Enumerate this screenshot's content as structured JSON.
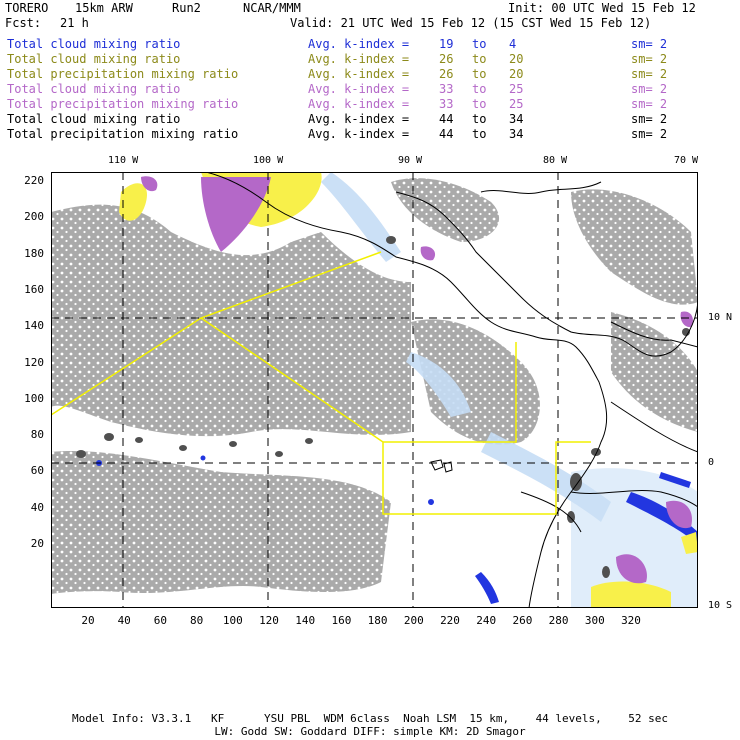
{
  "header": {
    "model": "TORERO",
    "resolution": "15km ARW",
    "run": "Run2",
    "org": "NCAR/MMM",
    "init": "Init: 00 UTC Wed 15 Feb 12",
    "fcst_label": "Fcst:",
    "fcst_value": "21 h",
    "valid": "Valid: 21 UTC Wed 15 Feb 12 (15 CST Wed 15 Feb 12)"
  },
  "legend": [
    {
      "label": "Total cloud mixing ratio",
      "index": "Avg. k-index = ",
      "from": "19",
      "to_word": "to",
      "to": "4",
      "sm": "sm= 2",
      "color": "#1e2ed6"
    },
    {
      "label": "Total cloud mixing ratio",
      "index": "Avg. k-index = ",
      "from": "26",
      "to_word": "to",
      "to": "20",
      "sm": "sm= 2",
      "color": "#8c8a1a"
    },
    {
      "label": "Total precipitation mixing ratio",
      "index": "Avg. k-index = ",
      "from": "26",
      "to_word": "to",
      "to": "20",
      "sm": "sm= 2",
      "color": "#8c8a1a"
    },
    {
      "label": "Total cloud mixing ratio",
      "index": "Avg. k-index = ",
      "from": "33",
      "to_word": "to",
      "to": "25",
      "sm": "sm= 2",
      "color": "#b468c8"
    },
    {
      "label": "Total precipitation mixing ratio",
      "index": "Avg. k-index = ",
      "from": "33",
      "to_word": "to",
      "to": "25",
      "sm": "sm= 2",
      "color": "#b468c8"
    },
    {
      "label": "Total cloud mixing ratio",
      "index": "Avg. k-index = ",
      "from": "44",
      "to_word": "to",
      "to": "34",
      "sm": "sm= 2",
      "color": "#000000"
    },
    {
      "label": "Total precipitation mixing ratio",
      "index": "Avg. k-index = ",
      "from": "44",
      "to_word": "to",
      "to": "34",
      "sm": "sm= 2",
      "color": "#000000"
    }
  ],
  "axes": {
    "top_lon_labels": [
      "110 W",
      "100 W",
      "90 W",
      "80 W",
      "70 W"
    ],
    "right_lat_labels": [
      "10 N",
      "0",
      "10 S"
    ],
    "left_grid_labels": [
      "220",
      "200",
      "180",
      "160",
      "140",
      "120",
      "100",
      "80",
      "60",
      "40",
      "20"
    ],
    "bottom_grid_labels": [
      "20",
      "40",
      "60",
      "80",
      "100",
      "120",
      "140",
      "160",
      "180",
      "200",
      "220",
      "240",
      "260",
      "280",
      "300",
      "320"
    ]
  },
  "colors": {
    "cloud_gray": "#a6a6a6",
    "ice_light_blue": "#c6ddf5",
    "precip_blue": "#2236e0",
    "snow_yellow": "#f8f04a",
    "graupel_purple": "#b468c8",
    "domain_outline": "#f2f000"
  },
  "footer": {
    "line1": "Model Info: V3.3.1   KF      YSU PBL  WDM 6class  Noah LSM  15 km,    44 levels,    52 sec",
    "line2": "LW: Godd SW: Goddard DIFF: simple KM: 2D Smagor"
  }
}
